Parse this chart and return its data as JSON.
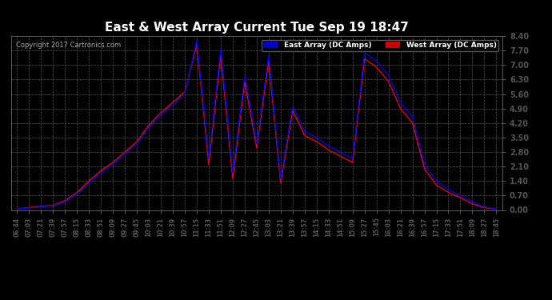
{
  "title": "East & West Array Current Tue Sep 19 18:47",
  "copyright": "Copyright 2017 Cartronics.com",
  "legend_east": "East Array (DC Amps)",
  "legend_west": "West Array (DC Amps)",
  "east_color": "#0000ff",
  "west_color": "#ff0000",
  "bg_color": "#000000",
  "plot_bg_color": "#000000",
  "grid_color": "#555555",
  "text_color": "#ffffff",
  "ylim": [
    0.0,
    8.4
  ],
  "yticks": [
    0.0,
    0.7,
    1.4,
    2.1,
    2.8,
    3.5,
    4.2,
    4.9,
    5.6,
    6.3,
    7.0,
    7.7,
    8.4
  ],
  "xtick_labels": [
    "06:44",
    "07:03",
    "07:21",
    "07:39",
    "07:57",
    "08:15",
    "08:33",
    "08:51",
    "09:09",
    "09:27",
    "09:45",
    "10:03",
    "10:21",
    "10:39",
    "10:57",
    "11:15",
    "11:33",
    "11:51",
    "12:09",
    "12:27",
    "12:45",
    "13:03",
    "13:21",
    "13:39",
    "13:57",
    "14:15",
    "14:33",
    "14:51",
    "15:09",
    "15:27",
    "15:45",
    "16:03",
    "16:21",
    "16:39",
    "16:57",
    "17:15",
    "17:33",
    "17:51",
    "18:09",
    "18:27",
    "18:45"
  ],
  "east_vals": [
    0.05,
    0.1,
    0.15,
    0.2,
    0.4,
    0.8,
    1.3,
    1.8,
    2.2,
    2.7,
    3.2,
    4.0,
    4.6,
    5.1,
    5.6,
    8.2,
    2.5,
    7.8,
    1.8,
    6.5,
    3.2,
    7.5,
    1.5,
    5.0,
    3.8,
    3.5,
    3.1,
    2.8,
    2.5,
    7.6,
    7.2,
    6.5,
    5.2,
    4.5,
    2.2,
    1.4,
    1.0,
    0.7,
    0.4,
    0.15,
    0.05
  ],
  "west_vals": [
    0.05,
    0.12,
    0.18,
    0.22,
    0.45,
    0.85,
    1.4,
    1.9,
    2.3,
    2.8,
    3.3,
    4.1,
    4.7,
    5.2,
    5.7,
    8.0,
    2.2,
    7.5,
    1.5,
    6.2,
    3.0,
    7.2,
    1.3,
    4.8,
    3.6,
    3.3,
    2.9,
    2.6,
    2.3,
    7.3,
    6.9,
    6.2,
    4.9,
    4.2,
    2.0,
    1.2,
    0.85,
    0.6,
    0.3,
    0.12,
    0.04
  ]
}
